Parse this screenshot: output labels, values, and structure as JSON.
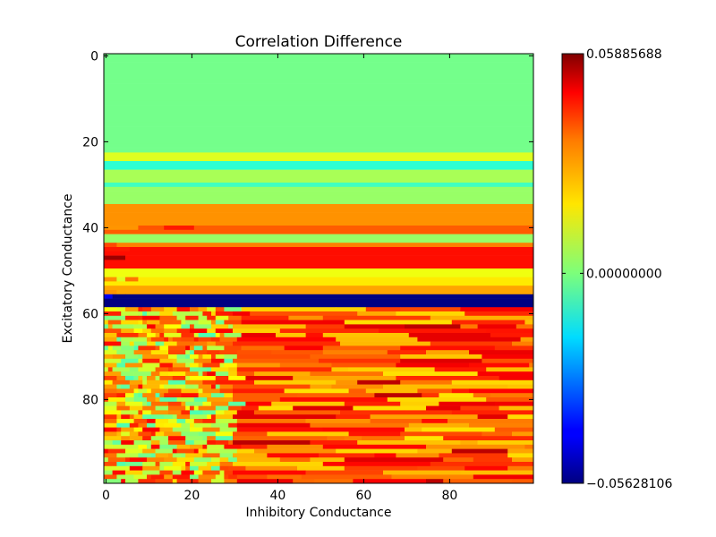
{
  "chart_data": {
    "type": "heatmap",
    "title": "Correlation Difference",
    "xlabel": "Inhibitory Conductance",
    "ylabel": "Excitatory Conductance",
    "xlim": [
      0,
      99
    ],
    "ylim": [
      99,
      0
    ],
    "grid": false,
    "colormap": "jet",
    "x_ticks": [
      0,
      20,
      40,
      60,
      80
    ],
    "y_ticks": [
      0,
      20,
      40,
      60,
      80
    ],
    "x_tick_labels": [
      "0",
      "20",
      "40",
      "60",
      "80"
    ],
    "y_tick_labels": [
      "0",
      "20",
      "40",
      "60",
      "80"
    ],
    "colorbar": {
      "min": -0.05628106,
      "max": 0.05885688,
      "ticks": [
        0.05885688,
        0.0,
        -0.05628106
      ],
      "tick_labels": [
        "0.05885688",
        "0.00000000",
        "−0.05628106"
      ]
    },
    "grid_size": [
      100,
      100
    ],
    "row_bands": [
      {
        "rows": [
          0,
          22
        ],
        "value": 0.0,
        "pattern": "uniform"
      },
      {
        "rows": [
          23,
          24
        ],
        "value": 0.012,
        "pattern": "uniform"
      },
      {
        "rows": [
          25,
          26
        ],
        "value": -0.008,
        "pattern": "uniform"
      },
      {
        "rows": [
          27,
          29
        ],
        "value": 0.006,
        "pattern": "uniform"
      },
      {
        "rows": [
          30,
          30
        ],
        "value": -0.006,
        "pattern": "uniform"
      },
      {
        "rows": [
          31,
          34
        ],
        "value": 0.004,
        "pattern": "uniform"
      },
      {
        "rows": [
          35,
          39
        ],
        "value": 0.028,
        "pattern": "uniform"
      },
      {
        "rows": [
          40,
          41
        ],
        "value": 0.034,
        "pattern": "uniform"
      },
      {
        "rows": [
          42,
          43
        ],
        "value": 0.004,
        "pattern": "uniform"
      },
      {
        "rows": [
          44,
          44
        ],
        "value": 0.03,
        "pattern": "uniform"
      },
      {
        "rows": [
          45,
          49
        ],
        "value": 0.043,
        "pattern": "uniform"
      },
      {
        "rows": [
          50,
          51
        ],
        "value": 0.014,
        "pattern": "uniform"
      },
      {
        "rows": [
          52,
          53
        ],
        "value": 0.018,
        "pattern": "uniform"
      },
      {
        "rows": [
          54,
          55
        ],
        "value": 0.026,
        "pattern": "uniform"
      },
      {
        "rows": [
          56,
          58
        ],
        "value": -0.056,
        "pattern": "uniform"
      },
      {
        "rows": [
          59,
          99
        ],
        "value": 0.032,
        "pattern": "mixed"
      }
    ]
  }
}
